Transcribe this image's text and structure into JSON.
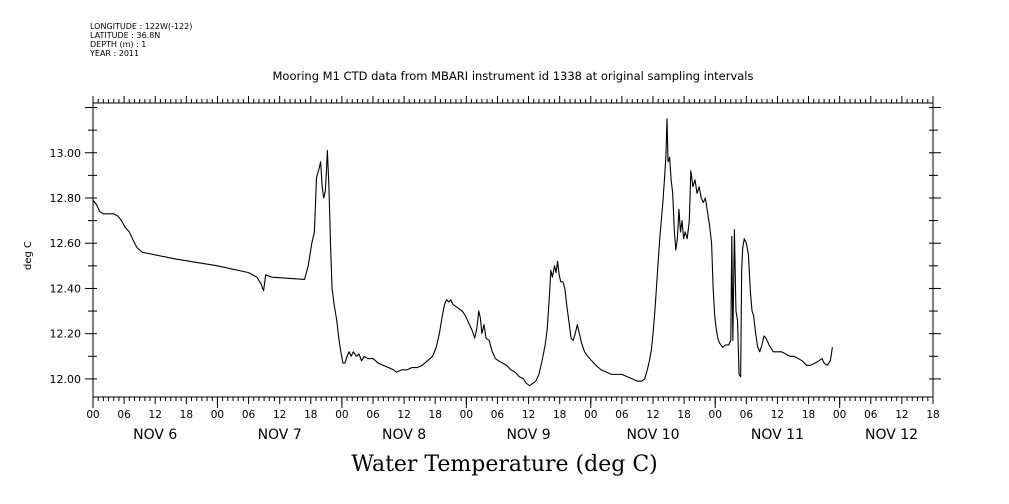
{
  "metadata": {
    "longitude": "LONGITUDE : 122W(-122)",
    "latitude": "LATITUDE : 36.8N",
    "depth": "DEPTH (m) : 1",
    "year": "YEAR : 2011"
  },
  "chart_data": {
    "type": "line",
    "title": "Mooring M1 CTD data from MBARI instrument id 1338 at original sampling intervals",
    "bottom_title": "Water Temperature (deg C)",
    "xlabel": "",
    "ylabel": "deg C",
    "x_unit": "hours from NOV 6 00:00",
    "xlim": [
      0,
      162
    ],
    "ylim": [
      11.92,
      13.22
    ],
    "yticks": [
      12.0,
      12.2,
      12.4,
      12.6,
      12.8,
      13.0
    ],
    "ytick_labels": [
      "12.00",
      "12.20",
      "12.40",
      "12.60",
      "12.80",
      "13.00"
    ],
    "xtick_hours": [
      0,
      6,
      12,
      18,
      24,
      30,
      36,
      42,
      48,
      54,
      60,
      66,
      72,
      78,
      84,
      90,
      96,
      102,
      108,
      114,
      120,
      126,
      132,
      138,
      144,
      150,
      156,
      162
    ],
    "xtick_labels": [
      "00",
      "06",
      "12",
      "18",
      "00",
      "06",
      "12",
      "18",
      "00",
      "06",
      "12",
      "18",
      "00",
      "06",
      "12",
      "18",
      "00",
      "06",
      "12",
      "18",
      "00",
      "06",
      "12",
      "18",
      "00",
      "06",
      "12",
      "18"
    ],
    "day_labels": [
      {
        "hour": 12,
        "label": "NOV  6"
      },
      {
        "hour": 36,
        "label": "NOV  7"
      },
      {
        "hour": 60,
        "label": "NOV  8"
      },
      {
        "hour": 84,
        "label": "NOV  9"
      },
      {
        "hour": 108,
        "label": "NOV 10"
      },
      {
        "hour": 132,
        "label": "NOV 11"
      },
      {
        "hour": 154,
        "label": "NOV 12"
      }
    ],
    "series": [
      {
        "color": "#000000",
        "points": [
          [
            0.0,
            12.79
          ],
          [
            0.7,
            12.77
          ],
          [
            1.3,
            12.74
          ],
          [
            2.0,
            12.73
          ],
          [
            3.0,
            12.73
          ],
          [
            4.0,
            12.73
          ],
          [
            4.8,
            12.72
          ],
          [
            5.5,
            12.7
          ],
          [
            6.2,
            12.67
          ],
          [
            7.0,
            12.65
          ],
          [
            7.8,
            12.61
          ],
          [
            8.5,
            12.58
          ],
          [
            9.5,
            12.56
          ],
          [
            16,
            12.53
          ],
          [
            24,
            12.5
          ],
          [
            30,
            12.47
          ],
          [
            31.6,
            12.45
          ],
          [
            32.4,
            12.42
          ],
          [
            32.9,
            12.39
          ],
          [
            33.3,
            12.46
          ],
          [
            34.5,
            12.45
          ],
          [
            40.8,
            12.44
          ],
          [
            41.5,
            12.5
          ],
          [
            42.2,
            12.6
          ],
          [
            42.7,
            12.65
          ],
          [
            43.1,
            12.89
          ],
          [
            43.6,
            12.93
          ],
          [
            43.9,
            12.96
          ],
          [
            44.2,
            12.85
          ],
          [
            44.5,
            12.8
          ],
          [
            44.8,
            12.83
          ],
          [
            45.0,
            12.91
          ],
          [
            45.2,
            13.01
          ],
          [
            45.5,
            12.85
          ],
          [
            45.8,
            12.6
          ],
          [
            46.1,
            12.4
          ],
          [
            46.5,
            12.33
          ],
          [
            47.0,
            12.26
          ],
          [
            47.4,
            12.18
          ],
          [
            47.8,
            12.12
          ],
          [
            48.2,
            12.07
          ],
          [
            48.6,
            12.07
          ],
          [
            49.0,
            12.1
          ],
          [
            49.4,
            12.12
          ],
          [
            49.8,
            12.1
          ],
          [
            50.2,
            12.12
          ],
          [
            50.8,
            12.1
          ],
          [
            51.3,
            12.11
          ],
          [
            51.8,
            12.08
          ],
          [
            52.3,
            12.1
          ],
          [
            53,
            12.09
          ],
          [
            54,
            12.09
          ],
          [
            55,
            12.07
          ],
          [
            56,
            12.06
          ],
          [
            57,
            12.05
          ],
          [
            58,
            12.04
          ],
          [
            58.5,
            12.03
          ],
          [
            59.5,
            12.04
          ],
          [
            60.5,
            12.04
          ],
          [
            61.5,
            12.05
          ],
          [
            62.5,
            12.05
          ],
          [
            63.5,
            12.06
          ],
          [
            64.5,
            12.08
          ],
          [
            65.5,
            12.1
          ],
          [
            66.2,
            12.14
          ],
          [
            66.8,
            12.2
          ],
          [
            67.3,
            12.27
          ],
          [
            67.8,
            12.33
          ],
          [
            68.2,
            12.35
          ],
          [
            68.6,
            12.34
          ],
          [
            69.0,
            12.35
          ],
          [
            69.4,
            12.33
          ],
          [
            70.0,
            12.32
          ],
          [
            70.6,
            12.31
          ],
          [
            71.2,
            12.3
          ],
          [
            71.8,
            12.28
          ],
          [
            72.4,
            12.25
          ],
          [
            72.8,
            12.23
          ],
          [
            73.2,
            12.21
          ],
          [
            73.6,
            12.18
          ],
          [
            74.0,
            12.22
          ],
          [
            74.4,
            12.3
          ],
          [
            74.7,
            12.27
          ],
          [
            75.0,
            12.2
          ],
          [
            75.4,
            12.24
          ],
          [
            75.8,
            12.18
          ],
          [
            76.4,
            12.17
          ],
          [
            77.0,
            12.12
          ],
          [
            77.6,
            12.09
          ],
          [
            78.2,
            12.08
          ],
          [
            79.0,
            12.07
          ],
          [
            79.8,
            12.06
          ],
          [
            80.6,
            12.04
          ],
          [
            81.4,
            12.03
          ],
          [
            82.2,
            12.01
          ],
          [
            83.0,
            12.0
          ],
          [
            83.6,
            11.98
          ],
          [
            84.2,
            11.97
          ],
          [
            84.8,
            11.98
          ],
          [
            85.4,
            11.99
          ],
          [
            86.0,
            12.02
          ],
          [
            86.6,
            12.08
          ],
          [
            87.2,
            12.15
          ],
          [
            87.6,
            12.22
          ],
          [
            88.0,
            12.36
          ],
          [
            88.3,
            12.48
          ],
          [
            88.6,
            12.45
          ],
          [
            89.0,
            12.5
          ],
          [
            89.3,
            12.47
          ],
          [
            89.6,
            12.52
          ],
          [
            89.9,
            12.46
          ],
          [
            90.2,
            12.43
          ],
          [
            90.6,
            12.43
          ],
          [
            91.0,
            12.4
          ],
          [
            91.4,
            12.32
          ],
          [
            91.8,
            12.25
          ],
          [
            92.2,
            12.18
          ],
          [
            92.6,
            12.17
          ],
          [
            93.0,
            12.2
          ],
          [
            93.4,
            12.24
          ],
          [
            93.8,
            12.2
          ],
          [
            94.2,
            12.16
          ],
          [
            94.8,
            12.12
          ],
          [
            95.4,
            12.1
          ],
          [
            96.2,
            12.08
          ],
          [
            97.0,
            12.06
          ],
          [
            98.0,
            12.04
          ],
          [
            99.0,
            12.03
          ],
          [
            100.0,
            12.02
          ],
          [
            101.0,
            12.02
          ],
          [
            102.0,
            12.02
          ],
          [
            103.0,
            12.01
          ],
          [
            104.0,
            12.0
          ],
          [
            105.0,
            11.99
          ],
          [
            105.8,
            11.99
          ],
          [
            106.4,
            12.0
          ],
          [
            106.9,
            12.04
          ],
          [
            107.3,
            12.08
          ],
          [
            107.7,
            12.13
          ],
          [
            108.0,
            12.2
          ],
          [
            108.3,
            12.28
          ],
          [
            108.6,
            12.38
          ],
          [
            109.0,
            12.52
          ],
          [
            109.3,
            12.62
          ],
          [
            109.6,
            12.7
          ],
          [
            109.9,
            12.78
          ],
          [
            110.2,
            12.88
          ],
          [
            110.5,
            12.99
          ],
          [
            110.7,
            13.15
          ],
          [
            110.9,
            12.96
          ],
          [
            111.2,
            12.98
          ],
          [
            111.5,
            12.88
          ],
          [
            111.8,
            12.82
          ],
          [
            112.1,
            12.66
          ],
          [
            112.4,
            12.57
          ],
          [
            112.7,
            12.62
          ],
          [
            113.0,
            12.75
          ],
          [
            113.3,
            12.65
          ],
          [
            113.6,
            12.7
          ],
          [
            113.9,
            12.62
          ],
          [
            114.2,
            12.65
          ],
          [
            114.6,
            12.62
          ],
          [
            115.0,
            12.7
          ],
          [
            115.3,
            12.92
          ],
          [
            115.7,
            12.85
          ],
          [
            116.1,
            12.88
          ],
          [
            116.5,
            12.82
          ],
          [
            116.9,
            12.85
          ],
          [
            117.3,
            12.8
          ],
          [
            117.7,
            12.78
          ],
          [
            118.1,
            12.8
          ],
          [
            118.5,
            12.74
          ],
          [
            118.9,
            12.68
          ],
          [
            119.3,
            12.6
          ],
          [
            119.6,
            12.4
          ],
          [
            119.9,
            12.28
          ],
          [
            120.2,
            12.22
          ],
          [
            120.5,
            12.18
          ],
          [
            120.8,
            12.16
          ],
          [
            121.4,
            12.14
          ],
          [
            122.0,
            12.15
          ],
          [
            122.6,
            12.15
          ],
          [
            123.0,
            12.17
          ],
          [
            123.2,
            12.63
          ],
          [
            123.4,
            12.17
          ],
          [
            123.7,
            12.66
          ],
          [
            124.0,
            12.3
          ],
          [
            124.3,
            12.26
          ],
          [
            124.6,
            12.02
          ],
          [
            124.9,
            12.01
          ],
          [
            125.1,
            12.48
          ],
          [
            125.3,
            12.58
          ],
          [
            125.6,
            12.62
          ],
          [
            126.0,
            12.6
          ],
          [
            126.4,
            12.55
          ],
          [
            126.8,
            12.38
          ],
          [
            127.1,
            12.3
          ],
          [
            127.4,
            12.28
          ],
          [
            127.8,
            12.2
          ],
          [
            128.2,
            12.14
          ],
          [
            128.6,
            12.12
          ],
          [
            129.0,
            12.15
          ],
          [
            129.4,
            12.19
          ],
          [
            129.8,
            12.18
          ],
          [
            130.4,
            12.15
          ],
          [
            131.2,
            12.12
          ],
          [
            132.0,
            12.12
          ],
          [
            132.8,
            12.12
          ],
          [
            133.6,
            12.11
          ],
          [
            134.4,
            12.1
          ],
          [
            135.2,
            12.1
          ],
          [
            136.0,
            12.09
          ],
          [
            136.8,
            12.08
          ],
          [
            137.6,
            12.06
          ],
          [
            138.4,
            12.06
          ],
          [
            139.2,
            12.07
          ],
          [
            140.0,
            12.08
          ],
          [
            140.6,
            12.09
          ],
          [
            141.0,
            12.07
          ],
          [
            141.6,
            12.06
          ],
          [
            142.2,
            12.08
          ],
          [
            142.6,
            12.14
          ]
        ]
      }
    ]
  }
}
